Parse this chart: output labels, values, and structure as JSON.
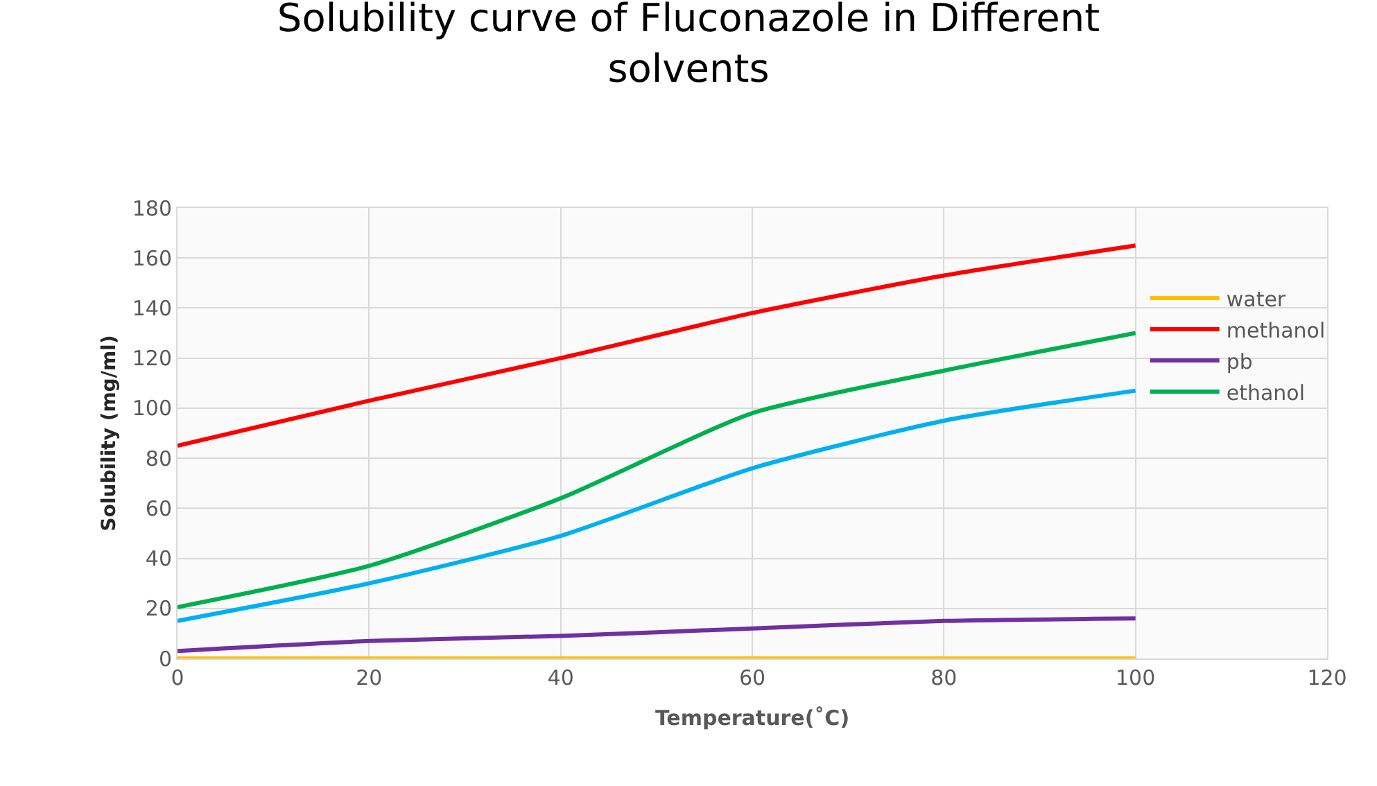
{
  "chart_data": {
    "type": "line",
    "title": "Solubility curve of Fluconazole in Different solvents",
    "xlabel": "Temperature(˚C)",
    "ylabel": "Solubility (mg/ml)",
    "x": [
      0,
      20,
      40,
      60,
      80,
      100
    ],
    "series": [
      {
        "name": "water",
        "color": "#ffc000",
        "values": [
          0,
          0,
          0,
          0,
          0,
          0
        ]
      },
      {
        "name": "methanol",
        "color": "#ff0000",
        "values": [
          85,
          103,
          120,
          138,
          153,
          165
        ]
      },
      {
        "name": "pb",
        "color": "#7030a0",
        "values": [
          3,
          7,
          9,
          12,
          15,
          16
        ]
      },
      {
        "name": "ethanol",
        "color": "#00b050",
        "values": [
          20.5,
          37,
          64,
          98,
          115,
          130
        ]
      },
      {
        "color": "#00b0f0",
        "values": [
          15,
          30,
          49,
          76,
          95,
          107
        ]
      }
    ],
    "xlim": [
      0,
      120
    ],
    "xticks": [
      0,
      20,
      40,
      60,
      80,
      100,
      120
    ],
    "ylim": [
      0,
      180
    ],
    "yticks": [
      0,
      20,
      40,
      60,
      80,
      100,
      120,
      140,
      160,
      180
    ],
    "grid": true,
    "legend": "right",
    "marker": "none",
    "line_style": "solid"
  }
}
